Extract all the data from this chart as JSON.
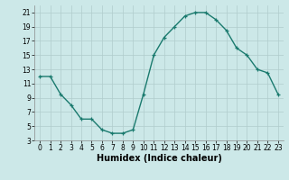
{
  "x": [
    0,
    1,
    2,
    3,
    4,
    5,
    6,
    7,
    8,
    9,
    10,
    11,
    12,
    13,
    14,
    15,
    16,
    17,
    18,
    19,
    20,
    21,
    22,
    23
  ],
  "y": [
    12,
    12,
    9.5,
    8,
    6,
    6,
    4.5,
    4,
    4,
    4.5,
    9.5,
    15,
    17.5,
    19,
    20.5,
    21,
    21,
    20,
    18.5,
    16,
    15,
    13,
    12.5,
    9.5
  ],
  "xlabel": "Humidex (Indice chaleur)",
  "xlim": [
    -0.5,
    23.5
  ],
  "ylim": [
    3,
    22
  ],
  "yticks": [
    3,
    5,
    7,
    9,
    11,
    13,
    15,
    17,
    19,
    21
  ],
  "xticks": [
    0,
    1,
    2,
    3,
    4,
    5,
    6,
    7,
    8,
    9,
    10,
    11,
    12,
    13,
    14,
    15,
    16,
    17,
    18,
    19,
    20,
    21,
    22,
    23
  ],
  "line_color": "#1a7a6e",
  "marker": "+",
  "bg_color": "#cce8e8",
  "grid_color": "#b0cccc",
  "tick_fontsize": 5.5,
  "xlabel_fontsize": 7.0,
  "linewidth": 1.0,
  "markersize": 3.5,
  "markeredgewidth": 0.9
}
